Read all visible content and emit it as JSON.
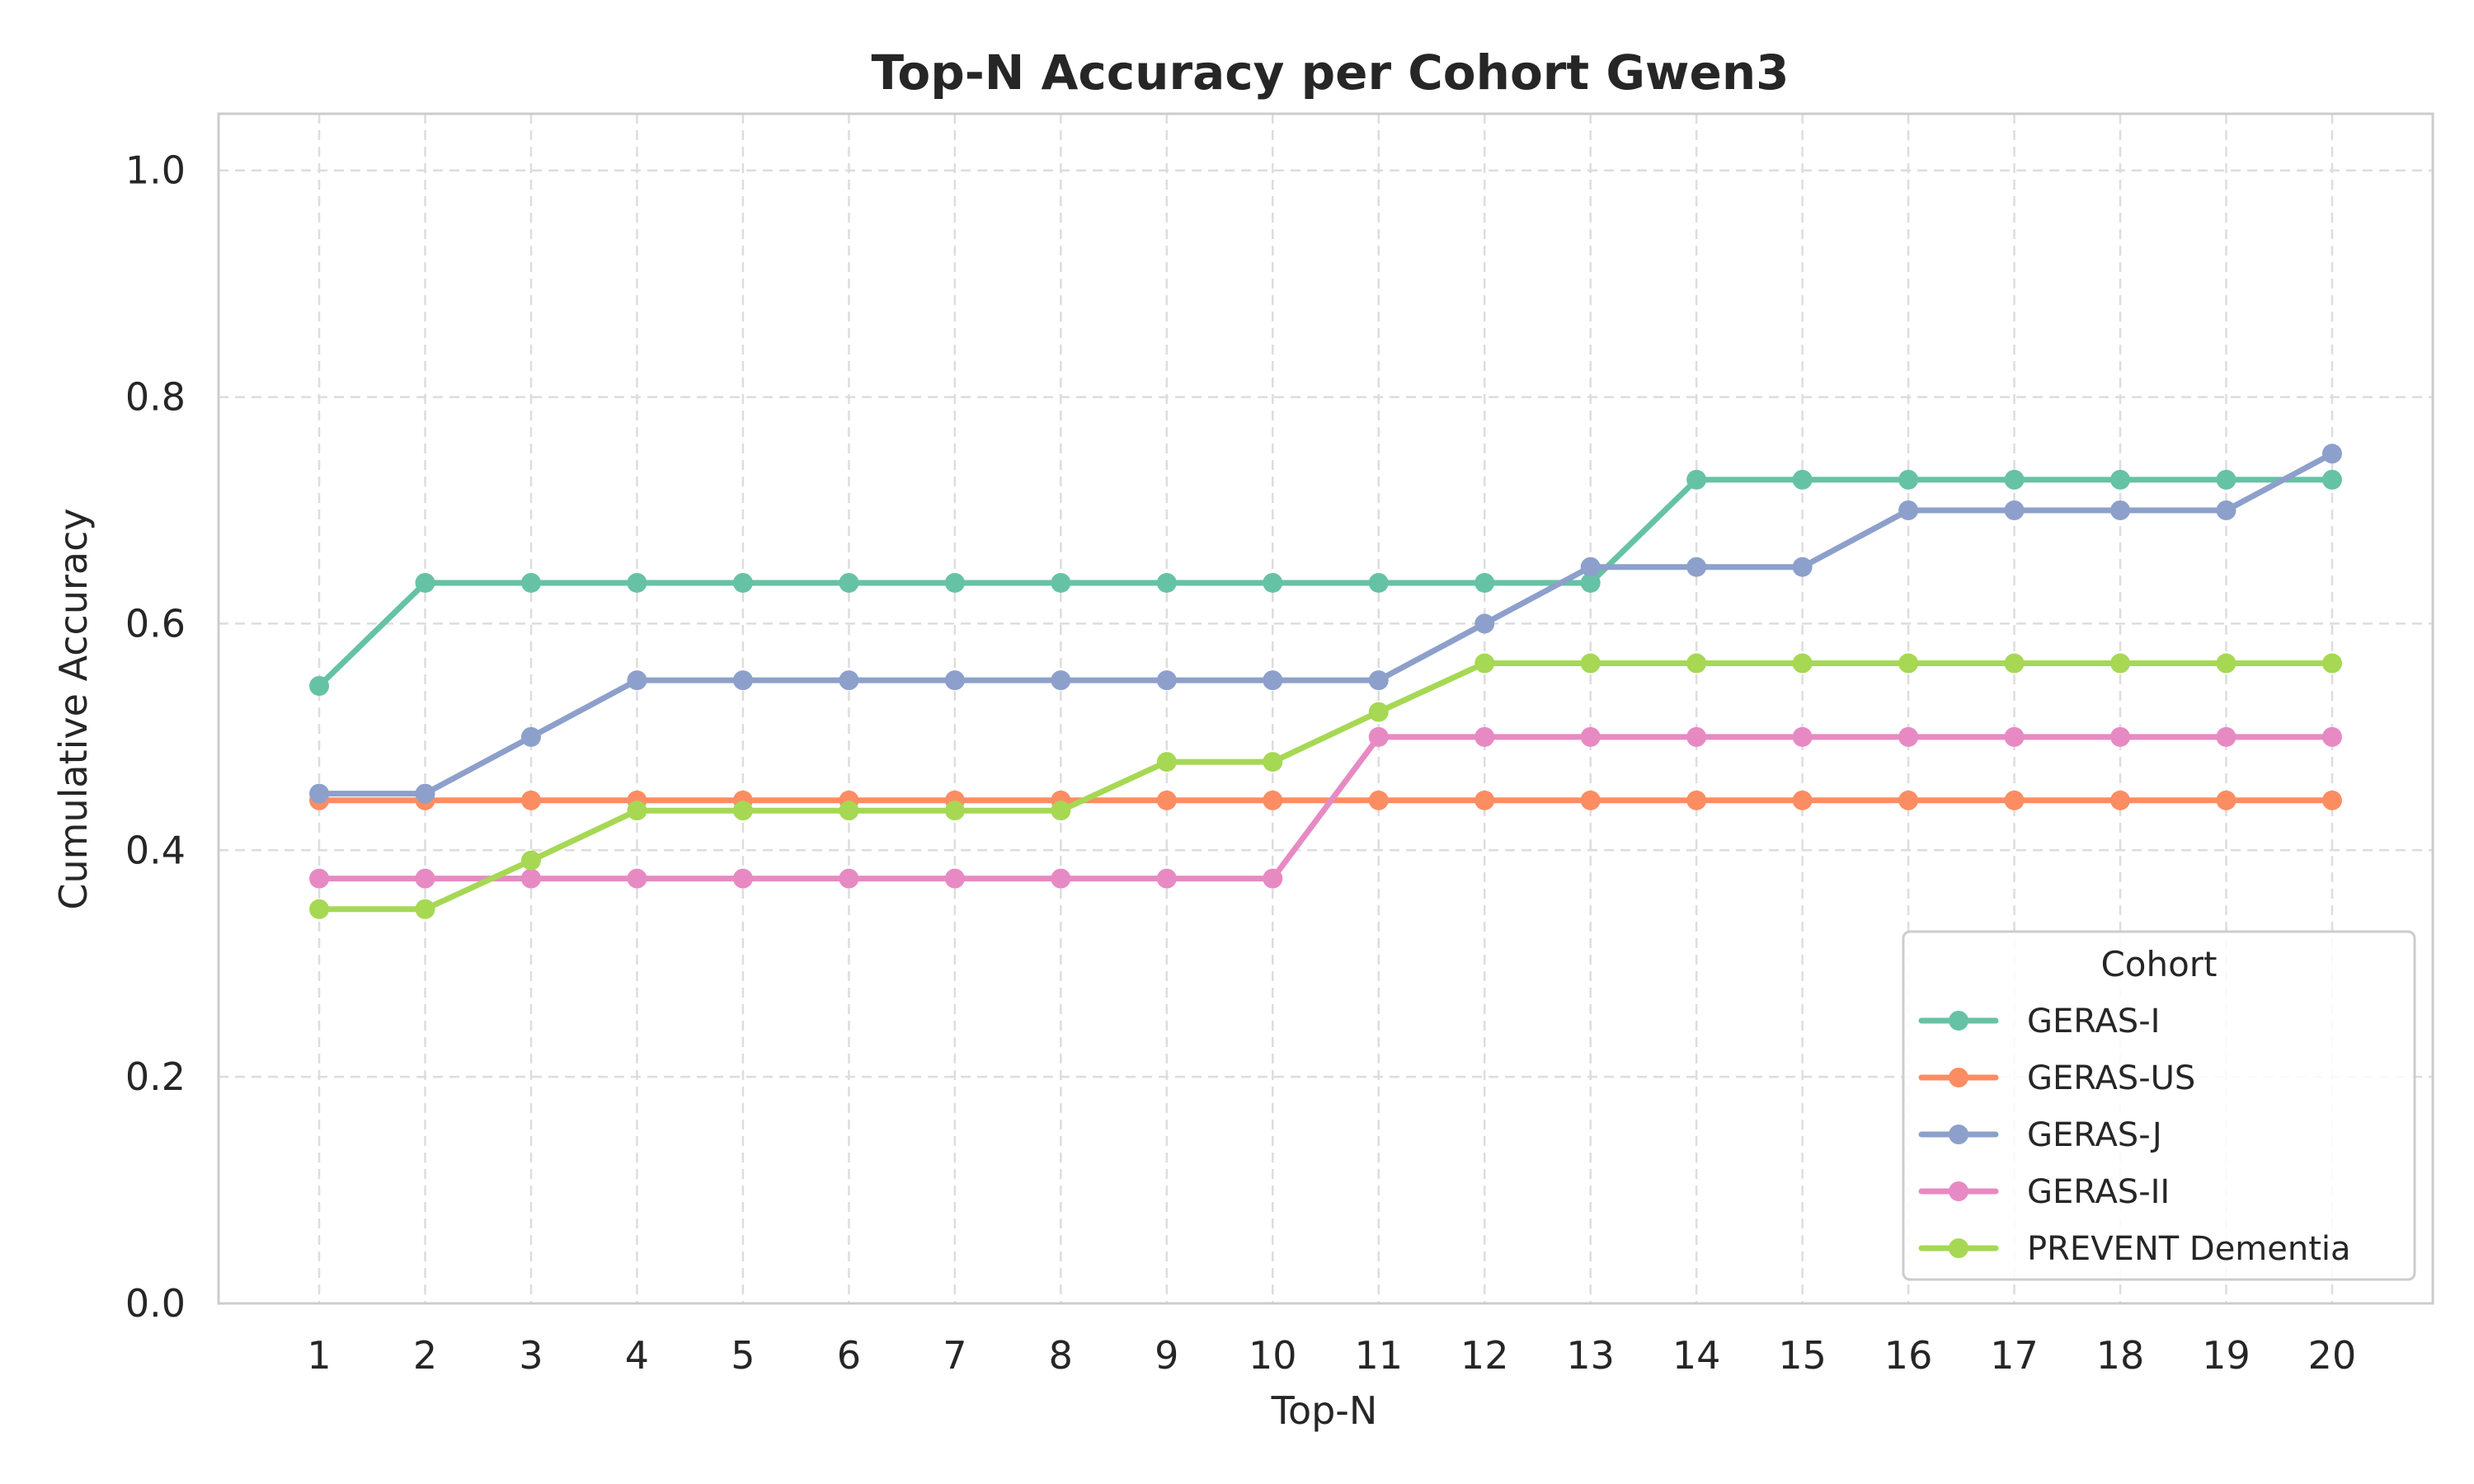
{
  "chart_data": {
    "type": "line",
    "title": "Top-N Accuracy per Cohort Gwen3",
    "xlabel": "Top-N",
    "ylabel": "Cumulative Accuracy",
    "x": [
      1,
      2,
      3,
      4,
      5,
      6,
      7,
      8,
      9,
      10,
      11,
      12,
      13,
      14,
      15,
      16,
      17,
      18,
      19,
      20
    ],
    "x_tick_labels": [
      "1",
      "2",
      "3",
      "4",
      "5",
      "6",
      "7",
      "8",
      "9",
      "10",
      "11",
      "12",
      "13",
      "14",
      "15",
      "16",
      "17",
      "18",
      "19",
      "20"
    ],
    "ylim": [
      0,
      1.05
    ],
    "y_ticks": [
      0.0,
      0.2,
      0.4,
      0.6,
      0.8,
      1.0
    ],
    "y_tick_labels": [
      "0.0",
      "0.2",
      "0.4",
      "0.6",
      "0.8",
      "1.0"
    ],
    "grid": true,
    "legend": {
      "title": "Cohort",
      "placement": "lower-right"
    },
    "series": [
      {
        "name": "GERAS-I",
        "color": "#66c2a5",
        "values": [
          0.545,
          0.636,
          0.636,
          0.636,
          0.636,
          0.636,
          0.636,
          0.636,
          0.636,
          0.636,
          0.636,
          0.636,
          0.636,
          0.727,
          0.727,
          0.727,
          0.727,
          0.727,
          0.727,
          0.727
        ]
      },
      {
        "name": "GERAS-US",
        "color": "#fc8d62",
        "values": [
          0.444,
          0.444,
          0.444,
          0.444,
          0.444,
          0.444,
          0.444,
          0.444,
          0.444,
          0.444,
          0.444,
          0.444,
          0.444,
          0.444,
          0.444,
          0.444,
          0.444,
          0.444,
          0.444,
          0.444
        ]
      },
      {
        "name": "GERAS-J",
        "color": "#8da0cb",
        "values": [
          0.45,
          0.45,
          0.5,
          0.55,
          0.55,
          0.55,
          0.55,
          0.55,
          0.55,
          0.55,
          0.55,
          0.6,
          0.65,
          0.65,
          0.65,
          0.7,
          0.7,
          0.7,
          0.7,
          0.75
        ]
      },
      {
        "name": "GERAS-II",
        "color": "#e78ac3",
        "values": [
          0.375,
          0.375,
          0.375,
          0.375,
          0.375,
          0.375,
          0.375,
          0.375,
          0.375,
          0.375,
          0.5,
          0.5,
          0.5,
          0.5,
          0.5,
          0.5,
          0.5,
          0.5,
          0.5,
          0.5
        ]
      },
      {
        "name": "PREVENT Dementia",
        "color": "#a6d854",
        "values": [
          0.348,
          0.348,
          0.391,
          0.435,
          0.435,
          0.435,
          0.435,
          0.435,
          0.478,
          0.478,
          0.522,
          0.565,
          0.565,
          0.565,
          0.565,
          0.565,
          0.565,
          0.565,
          0.565,
          0.565
        ]
      }
    ]
  }
}
